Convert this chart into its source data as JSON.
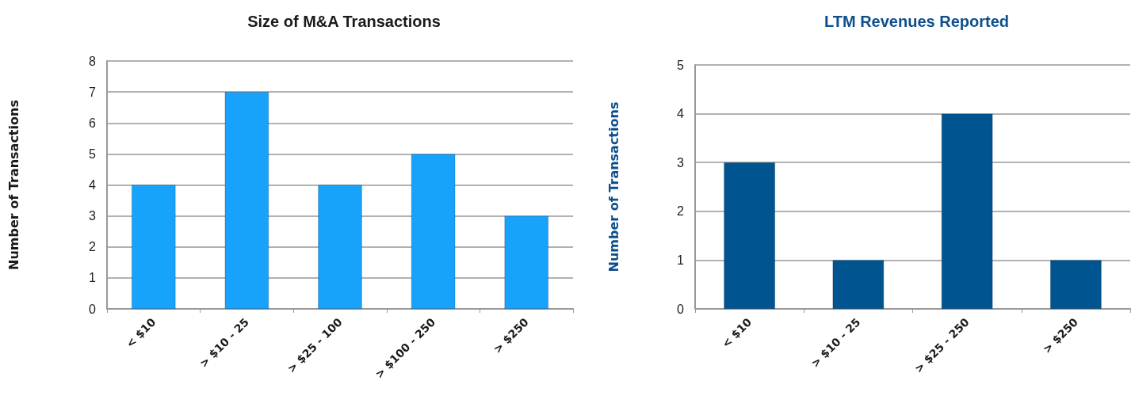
{
  "chart_data": [
    {
      "type": "bar",
      "title": "Size of M&A Transactions",
      "ylabel": "Number of Transactions",
      "categories": [
        "< $10",
        "> $10 - 25",
        "> $25 - 100",
        "> $100 - 250",
        "> $250"
      ],
      "values": [
        4,
        7,
        4,
        5,
        3
      ],
      "color": "#17a2fb",
      "ylim": [
        0,
        8
      ],
      "yticks": [
        0,
        1,
        2,
        3,
        4,
        5,
        6,
        7,
        8
      ],
      "grid": "y"
    },
    {
      "type": "bar",
      "title": "LTM Revenues Reported",
      "ylabel": "Number of Transactions",
      "categories": [
        "< $10",
        "> $10 - 25",
        "> $25 - 250",
        "> $250"
      ],
      "values": [
        3,
        1,
        4,
        1
      ],
      "color": "#00548f",
      "ylim": [
        0,
        5
      ],
      "yticks": [
        0,
        1,
        2,
        3,
        4,
        5
      ],
      "grid": "y"
    }
  ]
}
